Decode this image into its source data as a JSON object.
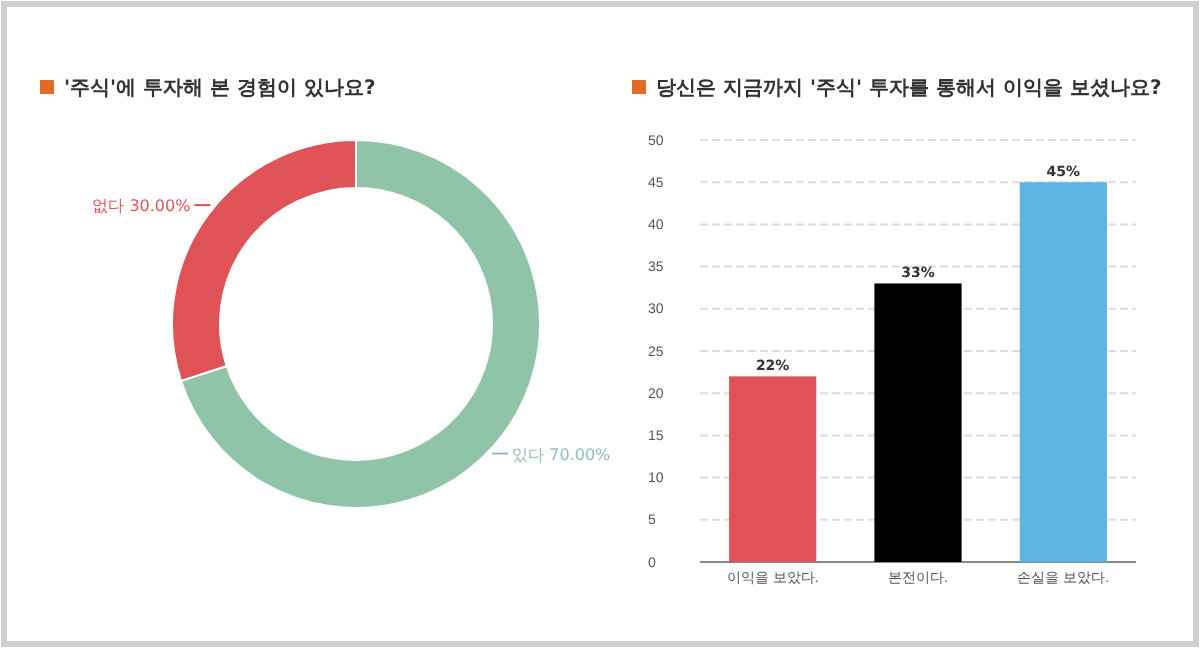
{
  "chart_data": [
    {
      "type": "donut",
      "title": "'주식'에 투자해 본 경험이 있나요?",
      "categories": [
        "있다",
        "없다"
      ],
      "values": [
        70,
        30
      ],
      "value_labels": [
        "70.00%",
        "30.00%"
      ],
      "colors": [
        "#8fc4a8",
        "#df5356"
      ]
    },
    {
      "type": "bar",
      "title": "당신은 지금까지 '주식' 투자를 통해서 이익을 보셨나요?",
      "categories": [
        "이익을 보았다.",
        "본전이다.",
        "손실을 보았다."
      ],
      "values": [
        22,
        33,
        45
      ],
      "value_labels": [
        "22%",
        "33%",
        "45%"
      ],
      "colors": [
        "#df5356",
        "#000000",
        "#5db5e3"
      ],
      "ylim": [
        0,
        50
      ],
      "yticks": [
        0,
        5,
        10,
        15,
        20,
        25,
        30,
        35,
        40,
        45,
        50
      ],
      "grid": "y"
    }
  ]
}
